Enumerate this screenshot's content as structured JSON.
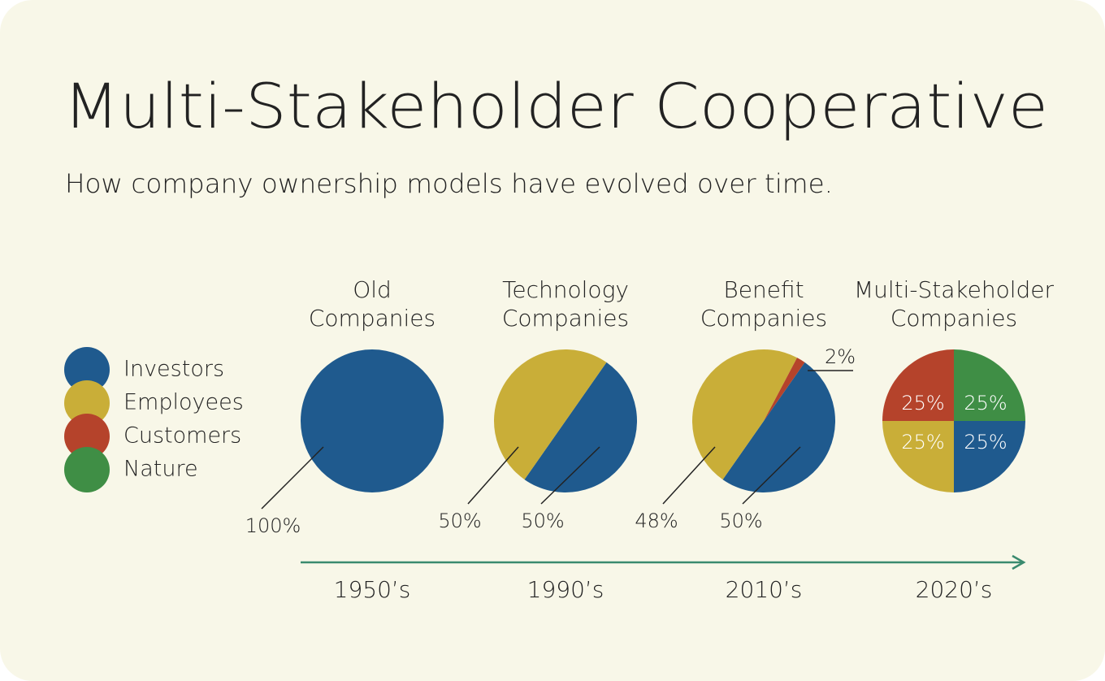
{
  "title": "Multi-Stakeholder Cooperative",
  "subtitle": "How company ownership models have evolved over time.",
  "chart_data": [
    {
      "type": "pie",
      "title": "Old Companies",
      "x_label": "1950’s",
      "categories": [
        "Investors"
      ],
      "values": [
        100
      ],
      "value_labels": [
        "100%"
      ],
      "colors": [
        "#1f5a8e"
      ]
    },
    {
      "type": "pie",
      "title": "Technology Companies",
      "x_label": "1990’s",
      "categories": [
        "Investors",
        "Employees"
      ],
      "values": [
        50,
        50
      ],
      "value_labels": [
        "50%",
        "50%"
      ],
      "colors": [
        "#1f5a8e",
        "#c9ae38"
      ]
    },
    {
      "type": "pie",
      "title": "Benefit Companies",
      "x_label": "2010’s",
      "categories": [
        "Investors",
        "Employees",
        "Customers"
      ],
      "values": [
        50,
        48,
        2
      ],
      "value_labels": [
        "50%",
        "48%",
        "2%"
      ],
      "colors": [
        "#1f5a8e",
        "#c9ae38",
        "#b5432b"
      ]
    },
    {
      "type": "pie",
      "title": "Multi-Stakeholder Companies",
      "x_label": "2020’s",
      "categories": [
        "Investors",
        "Employees",
        "Customers",
        "Nature"
      ],
      "values": [
        25,
        25,
        25,
        25
      ],
      "value_labels": [
        "25%",
        "25%",
        "25%",
        "25%"
      ],
      "colors": [
        "#1f5a8e",
        "#c9ae38",
        "#b5432b",
        "#3f8e45"
      ]
    }
  ]
}
